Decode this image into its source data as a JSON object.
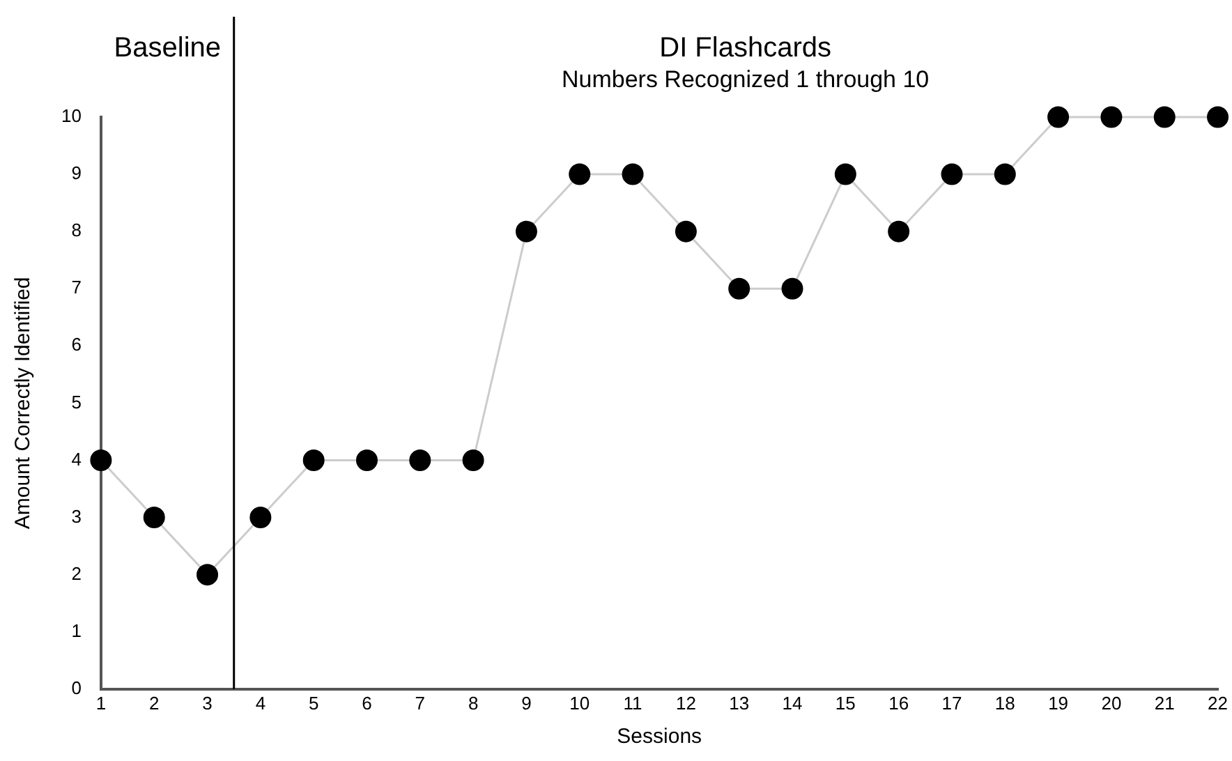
{
  "chart_data": {
    "type": "line",
    "title": "Numbers Recognized 1 through 10",
    "xlabel": "Sessions",
    "ylabel": "Amount Correctly Identified",
    "x": [
      1,
      2,
      3,
      4,
      5,
      6,
      7,
      8,
      9,
      10,
      11,
      12,
      13,
      14,
      15,
      16,
      17,
      18,
      19,
      20,
      21,
      22
    ],
    "series": [
      {
        "color": "#cccccc",
        "values": [
          4,
          3,
          2,
          3,
          4,
          4,
          4,
          4,
          8,
          9,
          9,
          8,
          7,
          7,
          9,
          8,
          9,
          9,
          10,
          10,
          10,
          10
        ]
      }
    ],
    "marker": "circle",
    "line_style": "solid",
    "grid": false,
    "legend": false,
    "xlim": [
      1,
      22
    ],
    "xticks": [
      1,
      2,
      3,
      4,
      5,
      6,
      7,
      8,
      9,
      10,
      11,
      12,
      13,
      14,
      15,
      16,
      17,
      18,
      19,
      20,
      21,
      22
    ],
    "ylim": [
      0,
      10
    ],
    "yticks": [
      0,
      1,
      2,
      3,
      4,
      5,
      6,
      7,
      8,
      9,
      10
    ],
    "ref_lines": [
      {
        "axis": "x",
        "value": 3.5,
        "color": "#000000"
      }
    ],
    "annotations": [
      "Baseline",
      "DI Flashcards"
    ]
  }
}
